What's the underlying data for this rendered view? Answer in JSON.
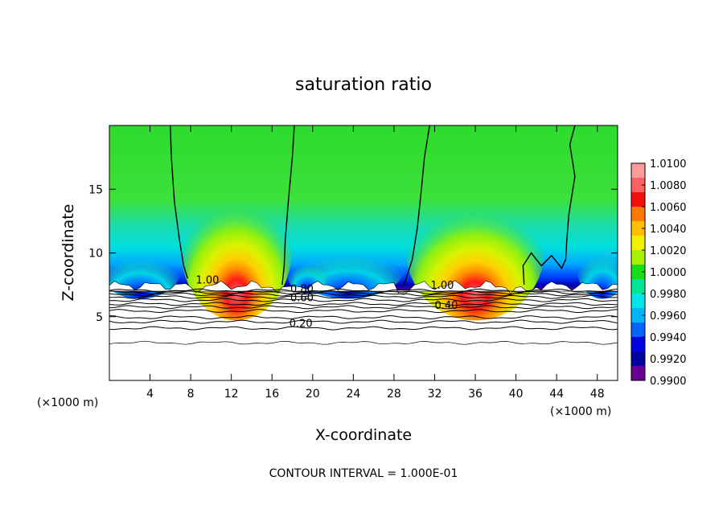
{
  "chart_data": {
    "type": "heatmap",
    "title": "saturation ratio",
    "xlabel": "X-coordinate",
    "ylabel": "Z-coordinate",
    "x_unit_label": "(×1000 m)",
    "xlim": [
      0,
      50
    ],
    "ylim": [
      0,
      20
    ],
    "x_ticks": [
      4,
      8,
      12,
      16,
      20,
      24,
      28,
      32,
      36,
      40,
      44,
      48
    ],
    "y_ticks": [
      5,
      10,
      15
    ],
    "footer": "CONTOUR INTERVAL = 1.000E-01",
    "colorbar": {
      "levels": [
        "1.0100",
        "1.0080",
        "1.0060",
        "1.0040",
        "1.0020",
        "1.0000",
        "0.9980",
        "0.9960",
        "0.9940",
        "0.9920",
        "0.9900"
      ],
      "colors": [
        "#ff9a9a",
        "#ff6060",
        "#f51010",
        "#ff7a00",
        "#ffbe00",
        "#f2f200",
        "#a6f200",
        "#19dc19",
        "#00e695",
        "#00e6e6",
        "#00b4ff",
        "#0064ff",
        "#0000e1",
        "#0000a0",
        "#6a0090"
      ]
    },
    "contour_labels": [
      {
        "text": "1.00",
        "x": 8.5,
        "y": 7.6
      },
      {
        "text": "0.80",
        "x": 17.8,
        "y": 6.9
      },
      {
        "text": "0.60",
        "x": 17.8,
        "y": 6.2
      },
      {
        "text": "1.00",
        "x": 31.6,
        "y": 7.2
      },
      {
        "text": "0.40",
        "x": 32.0,
        "y": 5.6
      },
      {
        "text": "0.20",
        "x": 17.7,
        "y": 4.2
      }
    ],
    "s_ratio_one_contours": [
      [
        [
          6.0,
          20
        ],
        [
          6.1,
          17.5
        ],
        [
          6.4,
          14
        ],
        [
          6.9,
          11
        ],
        [
          7.3,
          9
        ],
        [
          7.7,
          8
        ]
      ],
      [
        [
          18.2,
          20
        ],
        [
          18.0,
          17.5
        ],
        [
          17.6,
          14
        ],
        [
          17.3,
          11
        ],
        [
          17.2,
          9
        ],
        [
          17.0,
          7.5
        ]
      ],
      [
        [
          31.5,
          20
        ],
        [
          31.0,
          17.5
        ],
        [
          30.7,
          15
        ],
        [
          30.3,
          12
        ],
        [
          29.8,
          9.5
        ],
        [
          29.0,
          7.5
        ]
      ],
      [
        [
          45.8,
          20
        ],
        [
          45.3,
          18.5
        ],
        [
          45.8,
          16
        ],
        [
          45.2,
          13
        ],
        [
          45.0,
          11
        ],
        [
          44.9,
          9.5
        ],
        [
          44.5,
          8.8
        ],
        [
          43.5,
          9.8
        ],
        [
          42.5,
          9
        ],
        [
          41.5,
          10
        ],
        [
          40.7,
          9
        ],
        [
          40.8,
          7.5
        ]
      ]
    ],
    "lower_contour_heights": [
      7.05,
      6.9,
      6.75,
      6.55,
      6.3,
      6.0,
      5.75,
      5.45,
      4.95,
      4.6,
      4.1,
      2.95
    ]
  }
}
